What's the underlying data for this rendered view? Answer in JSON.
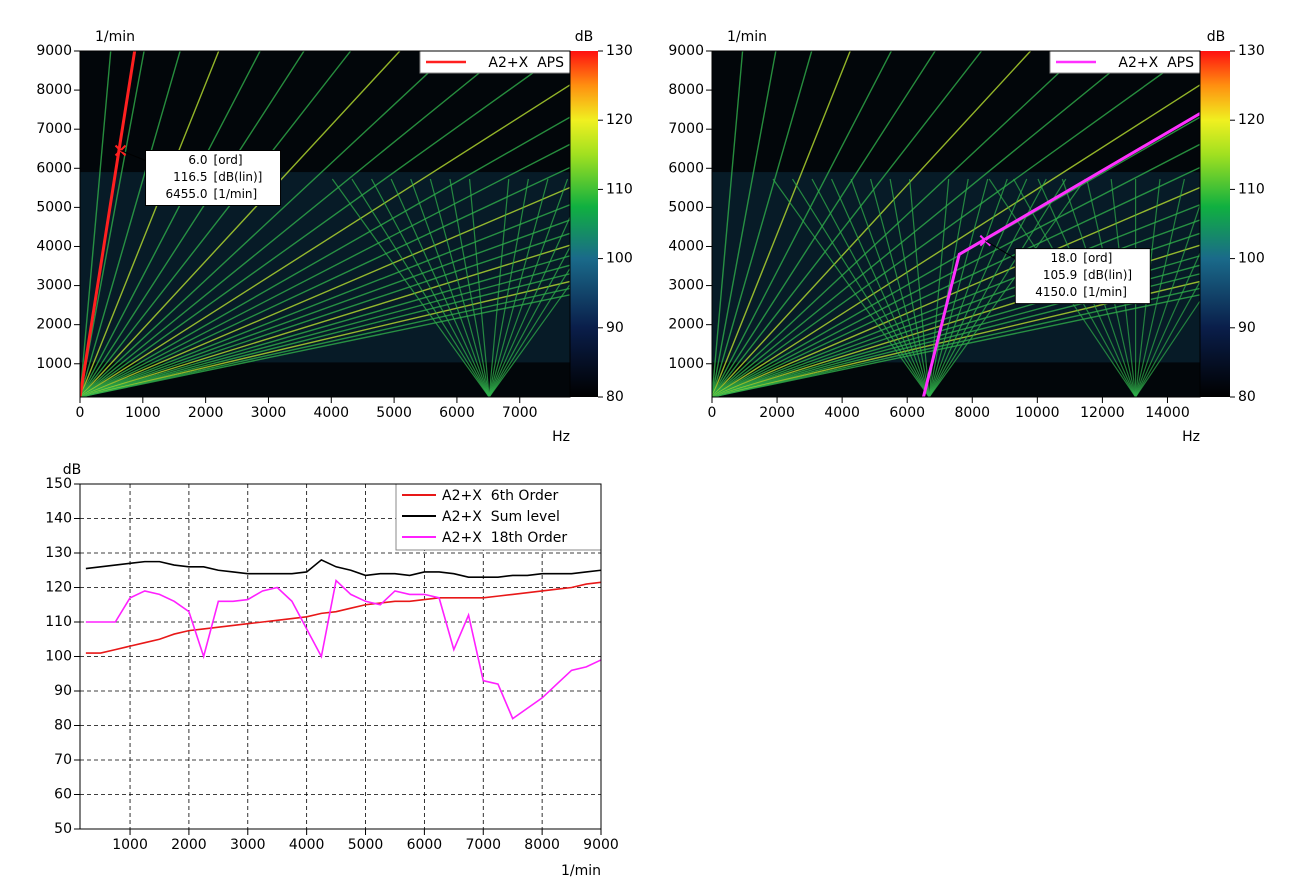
{
  "chart_data": [
    {
      "type": "spectrogram",
      "xlabel": "Hz",
      "ylabel": "1/min",
      "clabel": "dB",
      "xlim": [
        0,
        7800
      ],
      "xticks": [
        0,
        1000,
        2000,
        3000,
        4000,
        5000,
        6000,
        7000
      ],
      "ylim": [
        150,
        9000
      ],
      "yticks": [
        1000,
        2000,
        3000,
        4000,
        5000,
        6000,
        7000,
        8000,
        9000
      ],
      "clim": [
        80,
        130
      ],
      "cticks": [
        80,
        90,
        100,
        110,
        120,
        130
      ],
      "legend": {
        "name": "A2+X  APS",
        "color": "#ff2020"
      },
      "order_trace": {
        "x": [
          0,
          870
        ],
        "y": [
          150,
          9000
        ]
      },
      "cursor": {
        "x": 645,
        "values": [
          6,
          116.5,
          6455
        ],
        "value_labels": [
          "6.0",
          "116.5",
          "6455.0"
        ],
        "units": [
          "[ord]",
          "[dB(lin)]",
          "[1/min]"
        ]
      }
    },
    {
      "type": "spectrogram",
      "xlabel": "Hz",
      "ylabel": "1/min",
      "clabel": "dB",
      "xlim": [
        0,
        15000
      ],
      "xticks": [
        0,
        2000,
        4000,
        6000,
        8000,
        10000,
        12000,
        14000
      ],
      "ylim": [
        150,
        9000
      ],
      "yticks": [
        1000,
        2000,
        3000,
        4000,
        5000,
        6000,
        7000,
        8000,
        9000
      ],
      "clim": [
        80,
        130
      ],
      "cticks": [
        80,
        90,
        100,
        110,
        120,
        130
      ],
      "legend": {
        "name": "A2+X  APS",
        "color": "#ff30ff"
      },
      "order_trace": {
        "x": [
          6500,
          7600,
          15000
        ],
        "y": [
          150,
          3800,
          7400
        ]
      },
      "cursor": {
        "x": 8400,
        "values": [
          18,
          105.9,
          4150
        ],
        "value_labels": [
          "18.0",
          "105.9",
          "4150.0"
        ],
        "units": [
          "[ord]",
          "[dB(lin)]",
          "[1/min]"
        ]
      }
    },
    {
      "type": "line",
      "xlabel": "1/min",
      "ylabel": "dB",
      "grid": true,
      "xlim": [
        150,
        9000
      ],
      "xticks": [
        1000,
        2000,
        3000,
        4000,
        5000,
        6000,
        7000,
        8000,
        9000
      ],
      "ylim": [
        50,
        150
      ],
      "yticks": [
        50,
        60,
        70,
        80,
        90,
        100,
        110,
        120,
        130,
        140,
        150
      ],
      "x": [
        250,
        500,
        750,
        1000,
        1250,
        1500,
        1750,
        2000,
        2250,
        2500,
        2750,
        3000,
        3250,
        3500,
        3750,
        4000,
        4250,
        4500,
        4750,
        5000,
        5250,
        5500,
        5750,
        6000,
        6250,
        6500,
        6750,
        7000,
        7250,
        7500,
        7750,
        8000,
        8250,
        8500,
        8750,
        9000
      ],
      "series": [
        {
          "name": "A2+X  6th Order",
          "color": "#e81818",
          "values": [
            101,
            101,
            102,
            103,
            104,
            105,
            106.5,
            107.5,
            108,
            108.5,
            109,
            109.5,
            110,
            110.5,
            111,
            111.5,
            112.5,
            113,
            114,
            115,
            115.5,
            116,
            116,
            116.5,
            117,
            117,
            117,
            117,
            117.5,
            118,
            118.5,
            119,
            119.5,
            120,
            121,
            121.5
          ]
        },
        {
          "name": "A2+X  Sum level",
          "color": "#000000",
          "values": [
            125.5,
            126,
            126.5,
            127,
            127.5,
            127.5,
            126.5,
            126,
            126,
            125,
            124.5,
            124,
            124,
            124,
            124,
            124.5,
            128,
            126,
            125,
            123.5,
            124,
            124,
            123.5,
            124.5,
            124.5,
            124,
            123,
            123,
            123,
            123.5,
            123.5,
            124,
            124,
            124,
            124.5,
            125
          ]
        },
        {
          "name": "A2+X  18th Order",
          "color": "#ff20ff",
          "values": [
            110,
            110,
            110,
            117,
            119,
            118,
            116,
            113,
            100,
            116,
            116,
            116.5,
            119,
            120,
            116,
            108,
            100,
            122,
            118,
            116,
            115,
            119,
            118,
            118,
            117,
            102,
            112,
            93,
            92,
            82,
            85,
            88,
            92,
            96,
            97,
            99
          ]
        }
      ]
    }
  ]
}
